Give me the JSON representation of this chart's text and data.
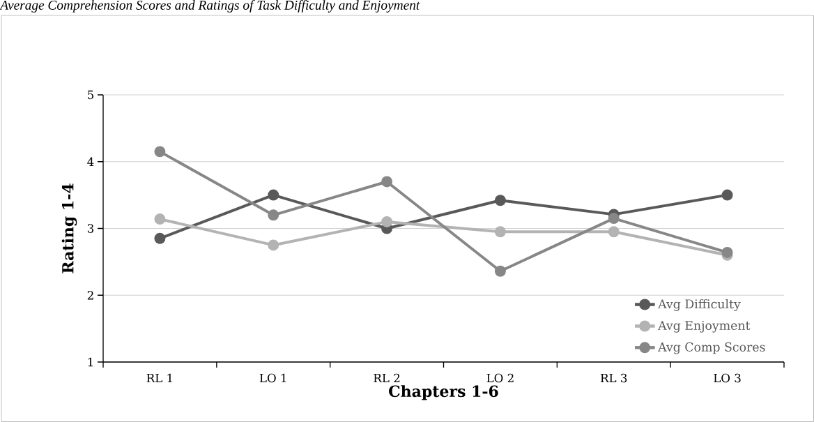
{
  "chart_data": {
    "type": "line",
    "title": "Average Comprehension Scores and Ratings of Task Difficulty and Enjoyment",
    "xlabel": "Chapters 1-6",
    "ylabel": "Rating 1-4",
    "categories": [
      "RL 1",
      "LO 1",
      "RL 2",
      "LO 2",
      "RL 3",
      "LO 3"
    ],
    "series": [
      {
        "name": "Avg Difficulty",
        "color": "#595959",
        "values": [
          2.85,
          3.5,
          3.0,
          3.42,
          3.21,
          3.5
        ]
      },
      {
        "name": "Avg Enjoyment",
        "color": "#b3b3b3",
        "values": [
          3.14,
          2.75,
          3.1,
          2.95,
          2.95,
          2.6
        ]
      },
      {
        "name": "Avg Comp Scores",
        "color": "#878787",
        "values": [
          4.15,
          3.2,
          3.7,
          2.36,
          3.15,
          2.64
        ]
      }
    ],
    "ylim": [
      1,
      5
    ],
    "yticks": [
      1,
      2,
      3,
      4,
      5
    ],
    "grid": "y",
    "legend": "bottom right",
    "marker": "circle",
    "line_style": "solid"
  }
}
